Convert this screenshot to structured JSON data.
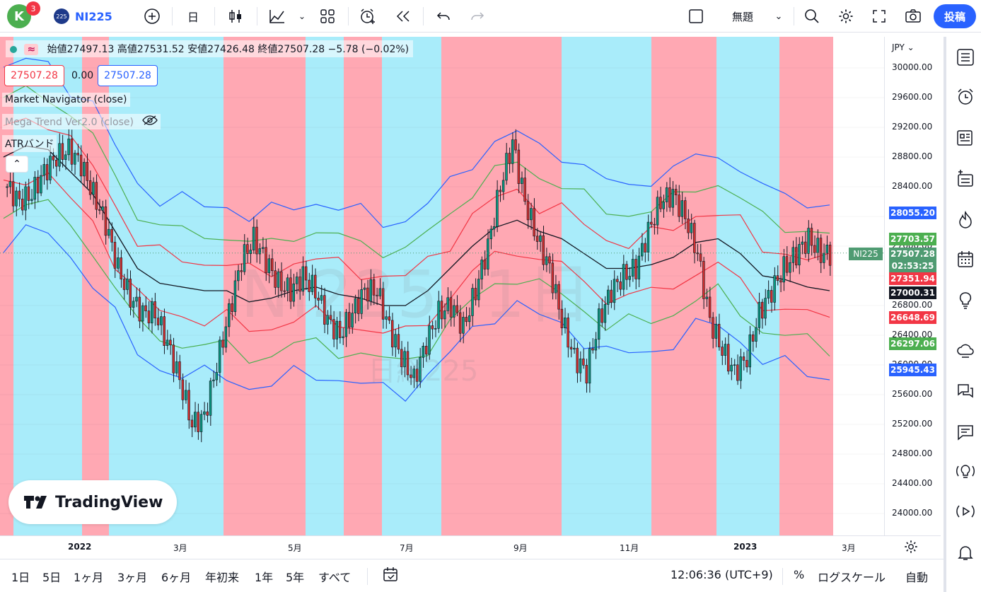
{
  "topbar": {
    "avatar_letter": "K",
    "notification_count": "3",
    "symbol_logo": "225",
    "symbol": "NI225",
    "interval": "日",
    "layout_name": "無題",
    "post_label": "投稿"
  },
  "legend": {
    "ohlc": "始値27497.13 高値27531.52 安値27426.48 終値27507.28 −5.78 (−0.02%)",
    "value_left": "27507.28",
    "value_mid": "0.00",
    "value_right": "27507.28",
    "indicators": [
      "Market Navigator (close)",
      "Mega Trend Ver2.0 (close)",
      "ATRバンド"
    ]
  },
  "watermark": {
    "main": "NI225, 1日",
    "sub": "日経225"
  },
  "price_axis": {
    "currency": "JPY",
    "ticks": [
      "30000.00",
      "29600.00",
      "29200.00",
      "28800.00",
      "28400.00",
      "28000.00",
      "27600.00",
      "27200.00",
      "26800.00",
      "26400.00",
      "26000.00",
      "25600.00",
      "25200.00",
      "24800.00",
      "24400.00",
      "24000.00"
    ],
    "tags": [
      {
        "label": "28055.20",
        "color": "#2962ff"
      },
      {
        "label": "27703.57",
        "color": "#4caf50"
      },
      {
        "label": "27507.28",
        "color": "#4f9b72"
      },
      {
        "label": "02:53:25",
        "color": "#4f9b72"
      },
      {
        "label": "27351.94",
        "color": "#f23645"
      },
      {
        "label": "27000.31",
        "color": "#131722"
      },
      {
        "label": "26648.69",
        "color": "#f23645"
      },
      {
        "label": "26297.06",
        "color": "#4caf50"
      },
      {
        "label": "25945.43",
        "color": "#2962ff"
      }
    ],
    "symbol_tag": "NI225"
  },
  "time_axis": {
    "labels": [
      "2022",
      "3月",
      "5月",
      "7月",
      "9月",
      "11月",
      "2023",
      "3月"
    ]
  },
  "bottombar": {
    "ranges": [
      "1日",
      "5日",
      "1ヶ月",
      "3ヶ月",
      "6ヶ月",
      "年初来",
      "1年",
      "5年",
      "すべて"
    ],
    "clock": "12:06:36 (UTC+9)",
    "percent": "%",
    "log": "ログスケール",
    "auto": "自動"
  },
  "brand": "TradingView",
  "chart_data": {
    "type": "candlestick",
    "symbol": "NI225",
    "last_close": 27507.28,
    "ylim": [
      23700,
      30300
    ],
    "background_zones": [
      "red",
      "blue",
      "red",
      "blue",
      "red",
      "blue",
      "red",
      "blue",
      "red",
      "blue",
      "red",
      "blue",
      "red",
      "blue",
      "red"
    ],
    "band_levels": {
      "upper_blue": 28055.2,
      "upper_green": 27703.57,
      "upper_red": 27351.94,
      "mid": 27000.31,
      "lower_red": 26648.69,
      "lower_green": 26297.06,
      "lower_blue": 25945.43
    },
    "mid_line": [
      28800,
      28950,
      28900,
      28600,
      28300,
      27800,
      27300,
      27100,
      27050,
      27000,
      27000,
      26850,
      26900,
      27000,
      27050,
      26950,
      26900,
      26800,
      26800,
      27000,
      27300,
      27600,
      27850,
      27950,
      27800,
      27700,
      27500,
      27300,
      27300,
      27350,
      27450,
      27650,
      27700,
      27500,
      27200,
      27150,
      27050,
      27000
    ],
    "candles_close": [
      28400,
      28200,
      28300,
      28600,
      28800,
      28900,
      28700,
      28300,
      27900,
      27300,
      26900,
      26700,
      26700,
      26300,
      25800,
      25200,
      25300,
      26000,
      26700,
      27400,
      27700,
      27400,
      27100,
      27000,
      27200,
      27000,
      26600,
      26400,
      26700,
      27000,
      27000,
      26500,
      26100,
      25800,
      26300,
      26700,
      26800,
      26500,
      27000,
      27600,
      28400,
      29000,
      28200,
      27700,
      27300,
      26600,
      26100,
      25900,
      26600,
      27000,
      27200,
      27300,
      27800,
      28200,
      28300,
      28000,
      27500,
      26600,
      26200,
      25900,
      26100,
      26700,
      27000,
      27300,
      27500,
      27700,
      27500
    ]
  }
}
